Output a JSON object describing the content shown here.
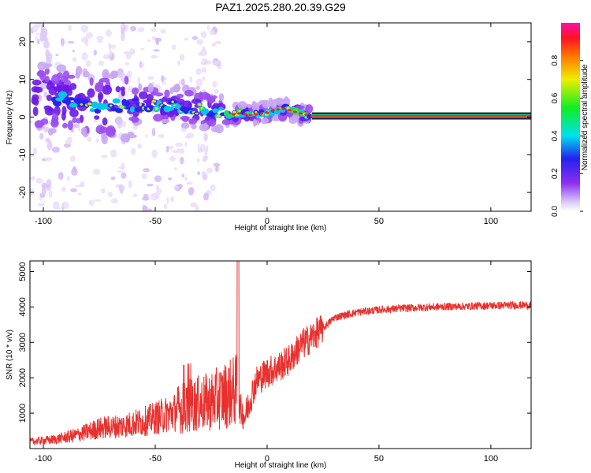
{
  "chart_data": [
    {
      "type": "heatmap",
      "title": "PAZ1.2025.280.20.39.G29",
      "xlabel": "Height of straight line (km)",
      "ylabel": "Frequency (Hz)",
      "xlim": [
        -106,
        118
      ],
      "ylim": [
        -25,
        25
      ],
      "xticks": [
        -100,
        -50,
        0,
        50,
        100
      ],
      "yticks": [
        -20,
        -10,
        0,
        10,
        20
      ],
      "ridge": {
        "x": [
          -95,
          -85,
          -75,
          -65,
          -55,
          -45,
          -35,
          -25,
          -18,
          -12,
          -8,
          -4,
          0,
          4,
          8,
          12,
          16,
          20,
          118
        ],
        "frequency": [
          5,
          4,
          3,
          3,
          3.5,
          3,
          2.5,
          1.5,
          0.5,
          1,
          0.5,
          0.8,
          1.2,
          2,
          2.2,
          1.5,
          0.8,
          0.3,
          0.3
        ]
      },
      "colorbar": {
        "label": "Normalized spectral amplitude",
        "range": [
          0,
          1
        ],
        "ticks": [
          "0.0",
          "0.2",
          "0.4",
          "0.6",
          "0.8"
        ]
      }
    },
    {
      "type": "line",
      "xlabel": "Height of straight line (km)",
      "ylabel": "SNR (10 * v/v)",
      "xlim": [
        -106,
        118
      ],
      "ylim": [
        0,
        5300
      ],
      "xticks": [
        -100,
        -50,
        0,
        50,
        100
      ],
      "yticks": [
        1000,
        2000,
        3000,
        4000,
        5000
      ],
      "color": "#e8312e",
      "series": [
        {
          "name": "SNR",
          "x": [
            -106,
            -95,
            -85,
            -75,
            -65,
            -55,
            -45,
            -35,
            -25,
            -20,
            -15,
            -13,
            -10,
            -5,
            0,
            5,
            10,
            15,
            20,
            25,
            30,
            40,
            50,
            60,
            70,
            80,
            90,
            100,
            110,
            118
          ],
          "values": [
            150,
            200,
            300,
            450,
            500,
            600,
            750,
            900,
            1000,
            1100,
            1200,
            1250,
            900,
            1900,
            2150,
            2300,
            2500,
            2900,
            3150,
            3400,
            3700,
            3850,
            3920,
            3960,
            3990,
            4010,
            4020,
            4040,
            4050,
            4050
          ]
        }
      ],
      "spike": {
        "x": -13,
        "value": 5300
      }
    }
  ]
}
